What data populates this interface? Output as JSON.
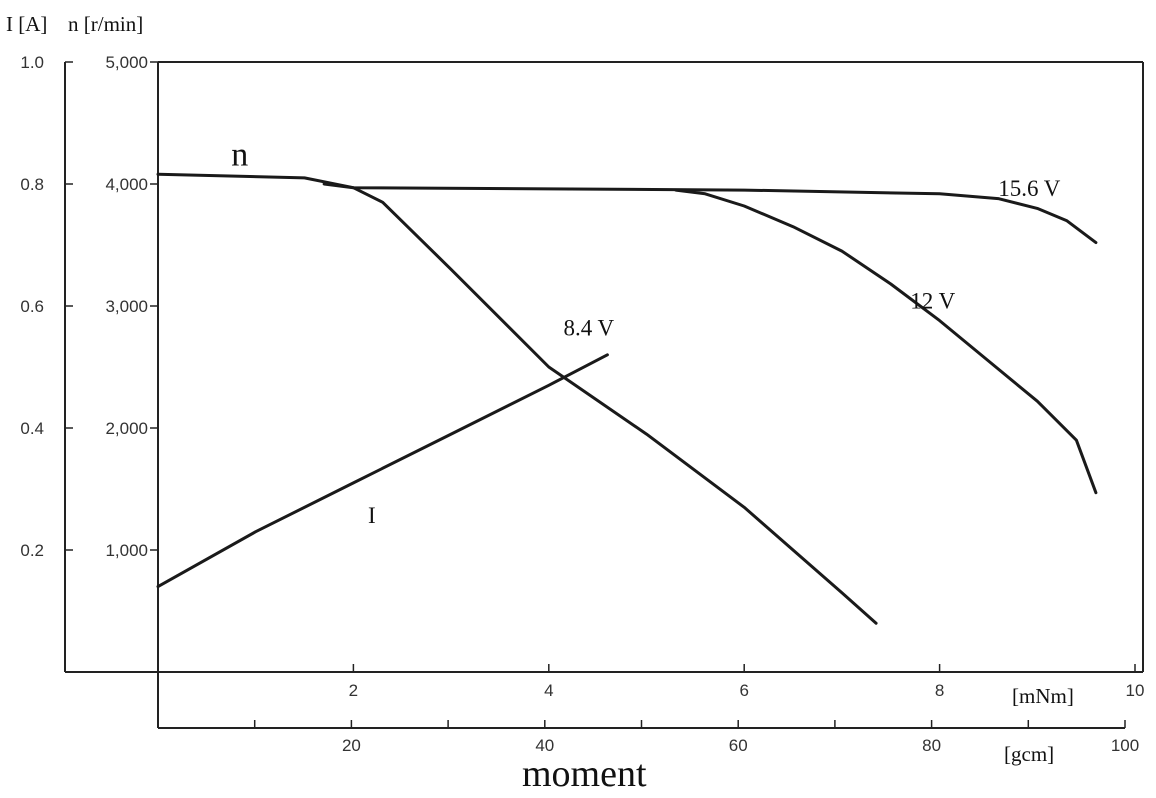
{
  "chart_data": {
    "type": "line",
    "y_left_label": "I [A]",
    "y_right_label": "n [r/min]",
    "x_top_label": "[mNm]",
    "x_bottom_label": "[gcm]",
    "x_title": "moment",
    "current_ticks": [
      "1.0",
      "0.8",
      "0.6",
      "0.4",
      "0.2"
    ],
    "current_tick_values": [
      1.0,
      0.8,
      0.6,
      0.4,
      0.2
    ],
    "speed_ticks": [
      "5,000",
      "4,000",
      "3,000",
      "2,000",
      "1,000"
    ],
    "speed_tick_values": [
      5000,
      4000,
      3000,
      2000,
      1000
    ],
    "mnm_ticks": [
      "2",
      "4",
      "6",
      "8",
      "10"
    ],
    "mnm_tick_values": [
      2,
      4,
      6,
      8,
      10
    ],
    "gcm_ticks": [
      "20",
      "40",
      "60",
      "80",
      "100"
    ],
    "gcm_tick_values": [
      20,
      40,
      60,
      80,
      100
    ],
    "xlim": [
      0,
      10
    ],
    "ylim_speed": [
      0,
      5000
    ],
    "ylim_current": [
      0,
      1.0
    ],
    "series": [
      {
        "name": "15.6 V",
        "unit": "r/min",
        "x": [
          0,
          1.5,
          2.0,
          4.0,
          6.0,
          8.0,
          8.6,
          9.0,
          9.3,
          9.6
        ],
        "y": [
          4080,
          4050,
          3970,
          3960,
          3950,
          3920,
          3880,
          3800,
          3700,
          3520
        ]
      },
      {
        "name": "12 V",
        "unit": "r/min",
        "x": [
          5.3,
          5.6,
          6.0,
          6.5,
          7.0,
          7.5,
          8.0,
          8.5,
          9.0,
          9.4,
          9.6
        ],
        "y": [
          3950,
          3920,
          3820,
          3650,
          3450,
          3180,
          2880,
          2550,
          2220,
          1900,
          1470
        ]
      },
      {
        "name": "8.4 V",
        "unit": "r/min",
        "x": [
          1.7,
          2.0,
          2.3,
          3.0,
          4.0,
          5.0,
          6.0,
          7.0,
          7.35
        ],
        "y": [
          4000,
          3970,
          3850,
          3300,
          2500,
          1950,
          1350,
          650,
          400
        ]
      },
      {
        "name": "I",
        "unit": "A",
        "x": [
          0,
          1.0,
          2.0,
          3.0,
          4.0,
          4.6
        ],
        "y": [
          0.14,
          0.23,
          0.31,
          0.39,
          0.47,
          0.52
        ]
      }
    ],
    "annotations": [
      {
        "text": "n",
        "x": 0.75,
        "y": 4150
      },
      {
        "text": "15.6 V",
        "x": 8.6,
        "y": 3900
      },
      {
        "text": "12 V",
        "x": 7.7,
        "y": 2980
      },
      {
        "text": "8.4 V",
        "x": 4.15,
        "y": 2760
      },
      {
        "text": "I",
        "x": 2.15,
        "y": 1220
      }
    ],
    "grid": false,
    "legend": "none"
  }
}
